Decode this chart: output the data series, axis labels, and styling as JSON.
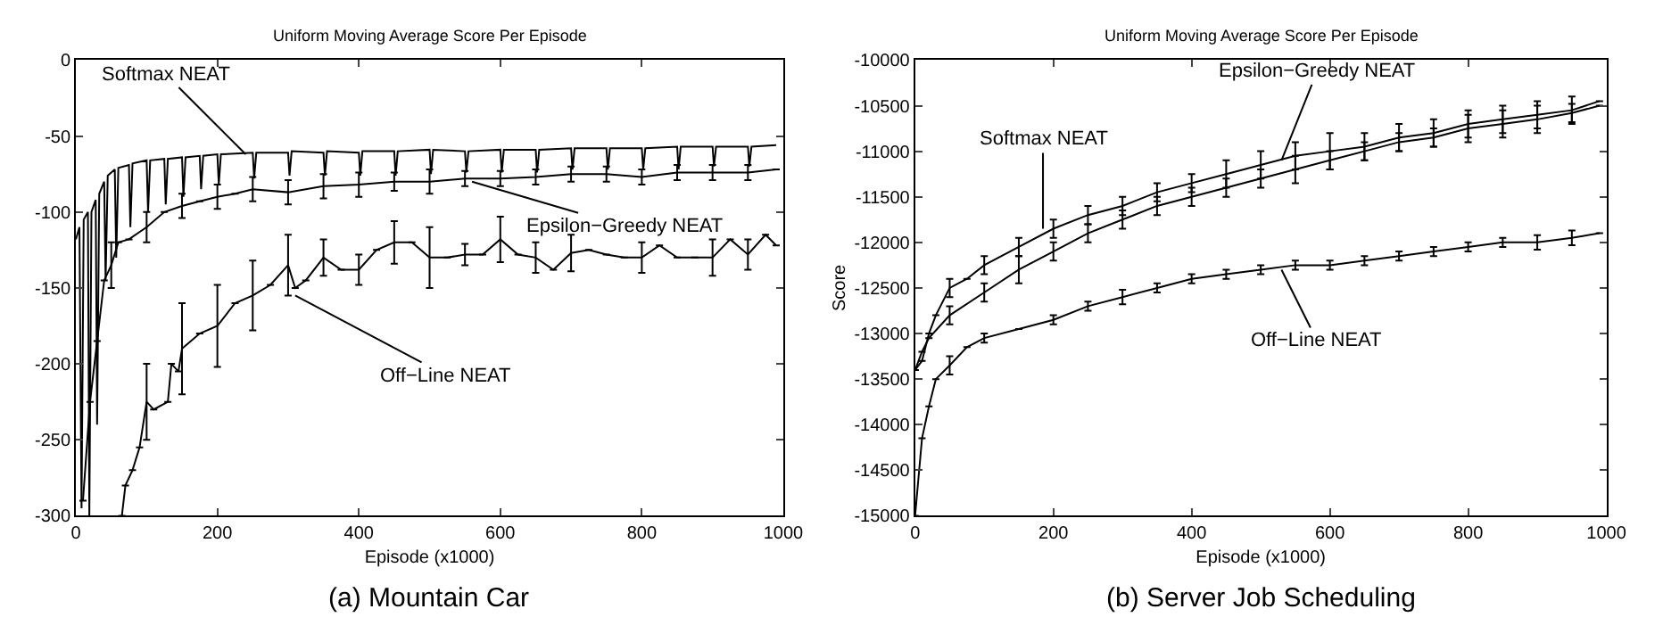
{
  "chart_data": [
    {
      "type": "line",
      "title": "Uniform Moving Average Score Per Episode",
      "xlabel": "Episode (x1000)",
      "xlim": [
        0,
        1000
      ],
      "xticks": [
        0,
        200,
        400,
        600,
        800,
        1000
      ],
      "ylim": [
        -300,
        0
      ],
      "yticks": [
        -300,
        -250,
        -200,
        -150,
        -100,
        -50,
        0
      ],
      "line_style": "solid",
      "annotations": [
        {
          "text": "Softmax NEAT",
          "x": 240,
          "y": -62
        },
        {
          "text": "Epsilon−Greedy NEAT",
          "x": 560,
          "y": -80
        },
        {
          "text": "Off−Line NEAT",
          "x": 310,
          "y": -155
        },
        "(a) Mountain Car"
      ],
      "series": [
        {
          "color": "#000000",
          "x": [
            0,
            5,
            8,
            11,
            17,
            19,
            22,
            28,
            30,
            33,
            40,
            42,
            45,
            55,
            57,
            60,
            75,
            77,
            80,
            100,
            102,
            105,
            125,
            127,
            130,
            150,
            152,
            155,
            175,
            177,
            180,
            200,
            202,
            205,
            250,
            252,
            255,
            300,
            302,
            305,
            350,
            352,
            355,
            400,
            402,
            405,
            450,
            452,
            455,
            500,
            502,
            505,
            550,
            552,
            555,
            600,
            602,
            605,
            650,
            652,
            655,
            700,
            702,
            705,
            750,
            752,
            755,
            800,
            802,
            805,
            850,
            852,
            855,
            900,
            902,
            905,
            950,
            952,
            955,
            990
          ],
          "values": [
            -118,
            -110,
            -295,
            -105,
            -100,
            -300,
            -100,
            -92,
            -240,
            -88,
            -80,
            -145,
            -76,
            -72,
            -130,
            -71,
            -69,
            -110,
            -68,
            -66,
            -100,
            -66,
            -65,
            -95,
            -65,
            -64,
            -90,
            -64,
            -63,
            -85,
            -63,
            -62,
            -82,
            -62,
            -61,
            -78,
            -61,
            -61,
            -76,
            -60,
            -61,
            -76,
            -60,
            -61,
            -76,
            -60,
            -60,
            -76,
            -60,
            -59,
            -75,
            -59,
            -60,
            -74,
            -60,
            -59,
            -74,
            -59,
            -59,
            -74,
            -59,
            -58,
            -72,
            -58,
            -58,
            -72,
            -58,
            -58,
            -72,
            -58,
            -57,
            -72,
            -57,
            -57,
            -70,
            -57,
            -57,
            -70,
            -57,
            -56
          ]
        },
        {
          "color": "#000000",
          "x": [
            10,
            20,
            30,
            40,
            50,
            60,
            75,
            100,
            125,
            150,
            175,
            200,
            225,
            250,
            300,
            350,
            400,
            450,
            500,
            550,
            600,
            650,
            700,
            750,
            800,
            850,
            900,
            950,
            990
          ],
          "values": [
            -290,
            -225,
            -185,
            -145,
            -135,
            -120,
            -118,
            -110,
            -100,
            -96,
            -93,
            -90,
            -88,
            -85,
            -87,
            -83,
            -82,
            -80,
            -80,
            -78,
            -78,
            -77,
            -75,
            -75,
            -77,
            -74,
            -74,
            -74,
            -72
          ],
          "errors": [
            null,
            null,
            null,
            null,
            15,
            null,
            null,
            10,
            null,
            8,
            null,
            8,
            null,
            8,
            8,
            8,
            8,
            6,
            8,
            5,
            5,
            5,
            5,
            5,
            5,
            5,
            5,
            5,
            null
          ]
        },
        {
          "color": "#000000",
          "x": [
            65,
            70,
            80,
            90,
            100,
            110,
            130,
            135,
            145,
            150,
            175,
            200,
            225,
            250,
            275,
            300,
            310,
            325,
            350,
            375,
            400,
            425,
            450,
            475,
            500,
            525,
            550,
            575,
            600,
            625,
            650,
            675,
            700,
            725,
            750,
            775,
            800,
            825,
            850,
            875,
            900,
            925,
            950,
            975,
            990
          ],
          "values": [
            -300,
            -280,
            -270,
            -255,
            -225,
            -230,
            -225,
            -200,
            -205,
            -190,
            -180,
            -175,
            -160,
            -155,
            -148,
            -135,
            -150,
            -145,
            -130,
            -138,
            -138,
            -125,
            -120,
            -120,
            -130,
            -130,
            -128,
            -128,
            -118,
            -128,
            -130,
            -138,
            -127,
            -125,
            -128,
            -130,
            -130,
            -122,
            -130,
            -130,
            -130,
            -118,
            -128,
            -115,
            -122
          ],
          "errors": [
            null,
            null,
            null,
            null,
            25,
            null,
            null,
            null,
            null,
            30,
            null,
            27,
            null,
            23,
            null,
            20,
            null,
            null,
            12,
            null,
            10,
            null,
            14,
            null,
            20,
            null,
            7,
            null,
            15,
            null,
            10,
            null,
            12,
            null,
            null,
            null,
            10,
            null,
            null,
            null,
            12,
            null,
            10,
            null,
            null
          ]
        }
      ]
    },
    {
      "type": "line",
      "title": "Uniform Moving Average Score Per Episode",
      "xlabel": "Episode (x1000)",
      "ylabel": "Score",
      "xlim": [
        0,
        1000
      ],
      "xticks": [
        0,
        200,
        400,
        600,
        800,
        1000
      ],
      "ylim": [
        -15000,
        -10000
      ],
      "yticks": [
        -15000,
        -14500,
        -14000,
        -13500,
        -13000,
        -12500,
        -12000,
        -11500,
        -11000,
        -10500,
        -10000
      ],
      "line_style": "solid",
      "annotations": [
        {
          "text": "Epsilon−Greedy NEAT",
          "x": 530,
          "y": -11100
        },
        {
          "text": "Softmax NEAT",
          "x": 185,
          "y": -11850
        },
        {
          "text": "Off−Line NEAT",
          "x": 530,
          "y": -12300
        },
        "(b) Server Job Scheduling"
      ],
      "series": [
        {
          "color": "#000000",
          "x": [
            0,
            10,
            20,
            30,
            50,
            75,
            100,
            150,
            200,
            250,
            300,
            350,
            400,
            450,
            500,
            550,
            600,
            650,
            700,
            750,
            800,
            850,
            900,
            950,
            990
          ],
          "values": [
            -13400,
            -13300,
            -13000,
            -12800,
            -12500,
            -12400,
            -12250,
            -12050,
            -11850,
            -11700,
            -11600,
            -11450,
            -11350,
            -11250,
            -11150,
            -11050,
            -11000,
            -10950,
            -10850,
            -10800,
            -10700,
            -10650,
            -10600,
            -10550,
            -10450
          ],
          "errors": [
            null,
            null,
            null,
            null,
            100,
            null,
            100,
            100,
            100,
            100,
            100,
            100,
            100,
            150,
            150,
            150,
            200,
            150,
            150,
            150,
            150,
            150,
            150,
            150,
            null
          ]
        },
        {
          "color": "#000000",
          "x": [
            0,
            10,
            20,
            50,
            100,
            150,
            200,
            250,
            300,
            350,
            400,
            450,
            500,
            550,
            600,
            650,
            700,
            750,
            800,
            850,
            900,
            950,
            990
          ],
          "values": [
            -13400,
            -13200,
            -13050,
            -12800,
            -12550,
            -12300,
            -12100,
            -11900,
            -11750,
            -11600,
            -11500,
            -11400,
            -11300,
            -11200,
            -11100,
            -11000,
            -10900,
            -10850,
            -10750,
            -10700,
            -10650,
            -10580,
            -10500
          ],
          "errors": [
            null,
            null,
            null,
            100,
            100,
            150,
            100,
            100,
            100,
            100,
            100,
            100,
            100,
            150,
            100,
            100,
            100,
            100,
            150,
            150,
            150,
            100,
            null
          ]
        },
        {
          "color": "#000000",
          "x": [
            0,
            10,
            20,
            30,
            50,
            75,
            100,
            150,
            200,
            250,
            300,
            350,
            400,
            450,
            500,
            550,
            600,
            650,
            700,
            750,
            800,
            850,
            900,
            950,
            990
          ],
          "values": [
            -15000,
            -14150,
            -13800,
            -13500,
            -13350,
            -13150,
            -13050,
            -12950,
            -12850,
            -12700,
            -12600,
            -12500,
            -12400,
            -12350,
            -12300,
            -12250,
            -12250,
            -12200,
            -12150,
            -12100,
            -12050,
            -12000,
            -12000,
            -11950,
            -11900
          ],
          "errors": [
            null,
            null,
            null,
            null,
            100,
            null,
            50,
            null,
            50,
            50,
            80,
            50,
            50,
            50,
            50,
            50,
            50,
            50,
            50,
            50,
            50,
            50,
            80,
            80,
            null
          ]
        }
      ]
    }
  ]
}
